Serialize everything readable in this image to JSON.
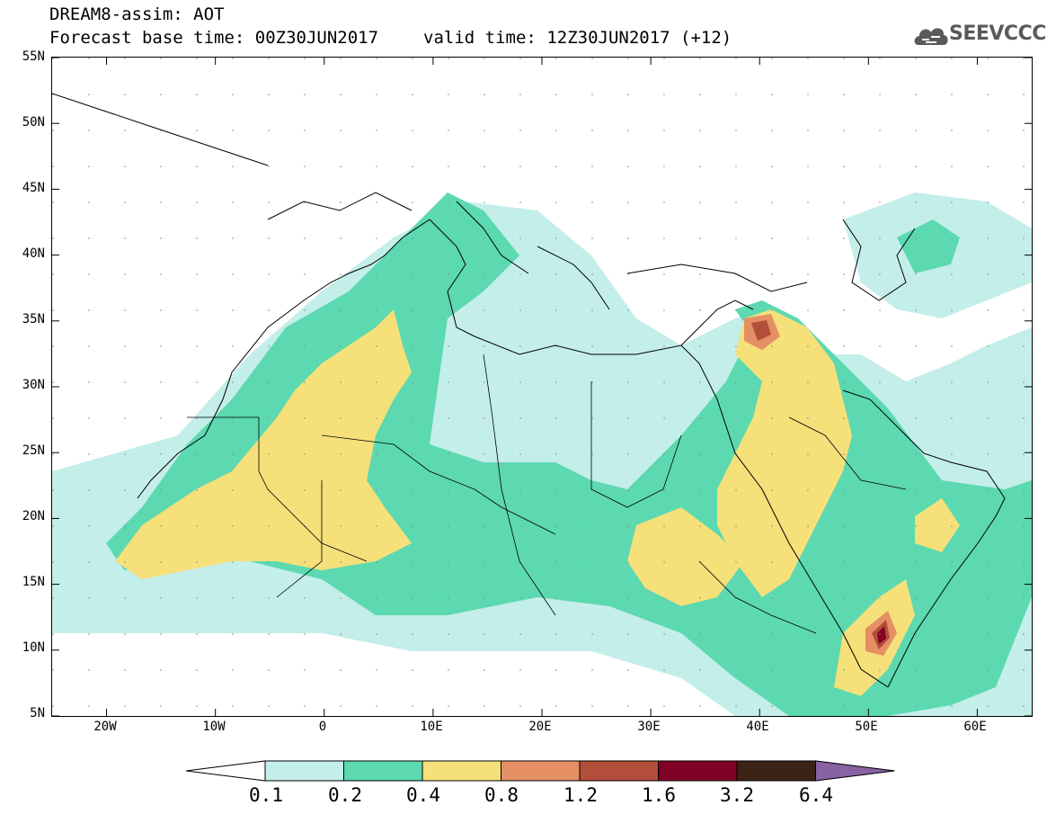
{
  "header": {
    "line1": "DREAM8-assim: AOT",
    "base_time": "Forecast base time: 00Z30JUN2017",
    "valid_time": "valid time: 12Z30JUN2017 (+12)"
  },
  "logo": {
    "text": "SEEVCCC",
    "icon": "cloud-logo-icon",
    "color": "#5a5a5a"
  },
  "map": {
    "lon_range": [
      -25,
      65
    ],
    "lat_range": [
      5,
      55
    ],
    "lat_ticks": [
      "55N",
      "50N",
      "45N",
      "40N",
      "35N",
      "30N",
      "25N",
      "20N",
      "15N",
      "10N",
      "5N"
    ],
    "lon_ticks": [
      "20W",
      "10W",
      "0",
      "10E",
      "20E",
      "30E",
      "40E",
      "50E",
      "60E"
    ]
  },
  "colorbar": {
    "labels": [
      "0.1",
      "0.2",
      "0.4",
      "0.8",
      "1.2",
      "1.6",
      "3.2",
      "6.4"
    ],
    "colors": [
      "#ffffff",
      "#c4eeea",
      "#5cd9b0",
      "#f5e07a",
      "#e58f64",
      "#b24e3a",
      "#810025",
      "#3d2216",
      "#8962a2"
    ]
  }
}
